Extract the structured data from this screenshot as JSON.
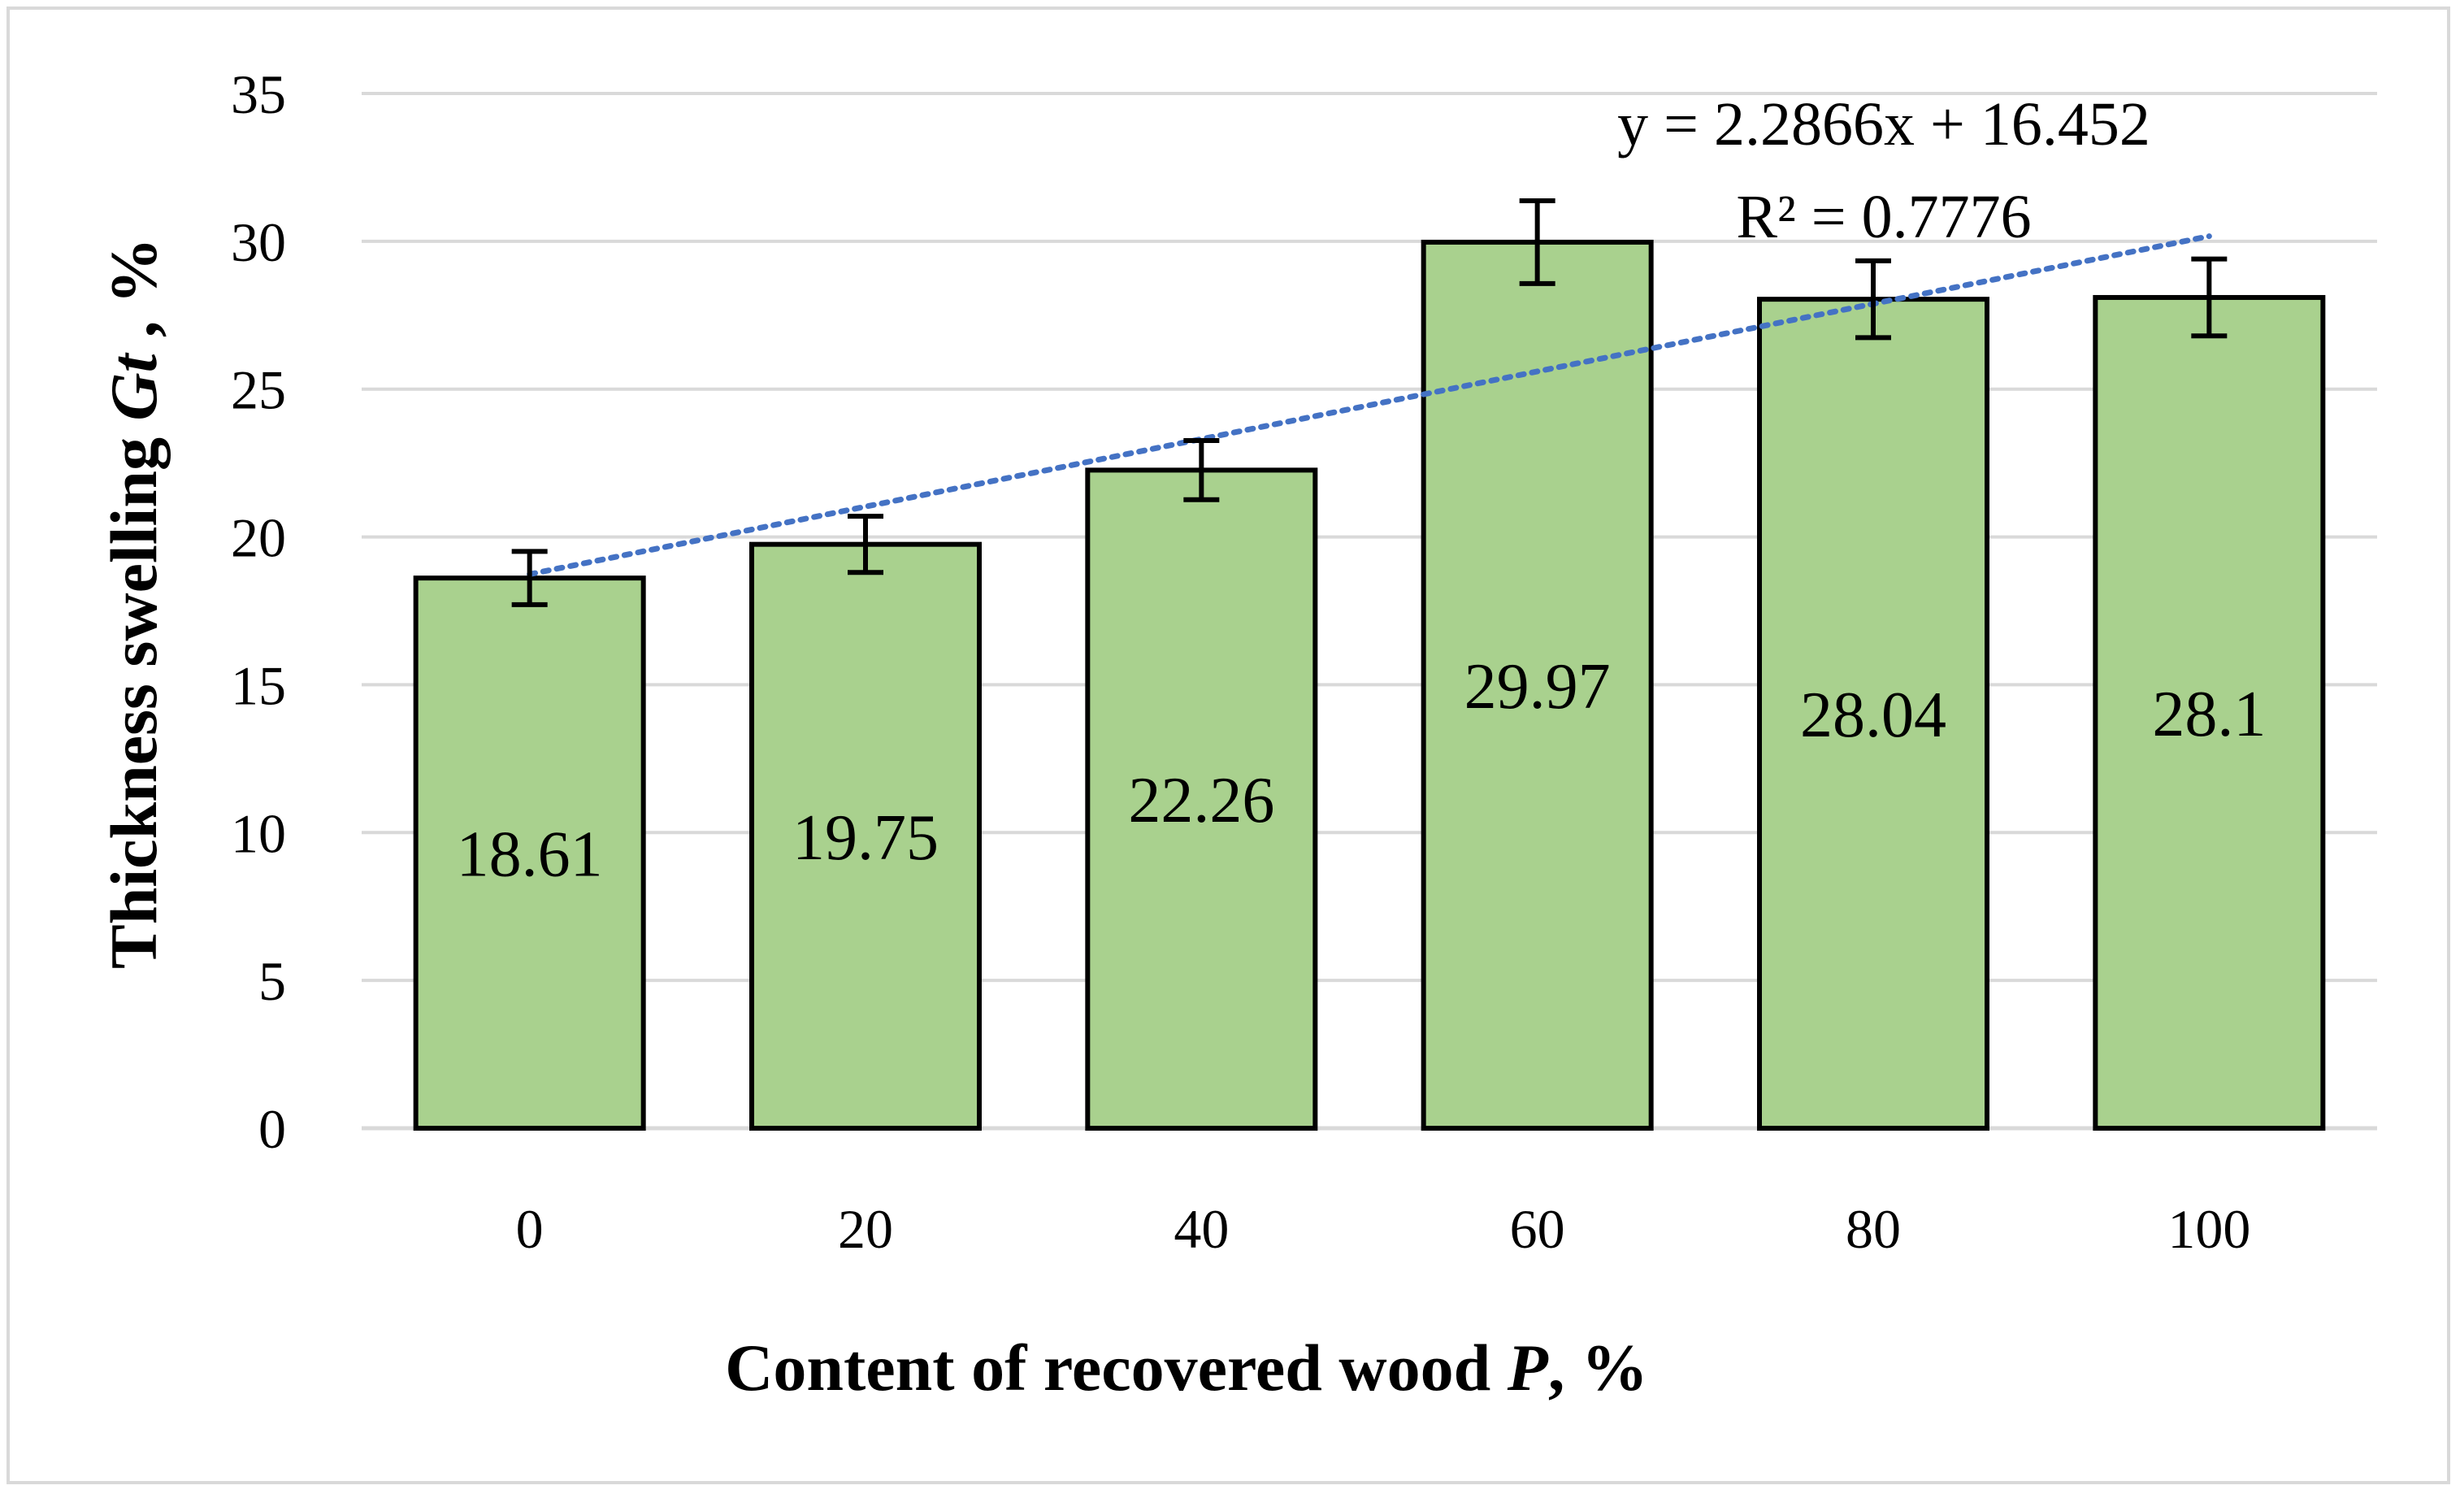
{
  "chart_data": {
    "type": "bar",
    "categories": [
      "0",
      "20",
      "40",
      "60",
      "80",
      "100"
    ],
    "values": [
      18.61,
      19.75,
      22.26,
      29.97,
      28.04,
      28.1
    ],
    "data_labels": [
      "18.61",
      "19.75",
      "22.26",
      "29.97",
      "28.04",
      "28.1"
    ],
    "error_bars": [
      0.9,
      0.95,
      1.0,
      1.4,
      1.3,
      1.3
    ],
    "ylim": [
      0,
      35
    ],
    "yticks": [
      "0",
      "5",
      "10",
      "15",
      "20",
      "25",
      "30",
      "35"
    ],
    "grid": true,
    "legend": "none",
    "xlabel": {
      "prefix": "Content of recovered wood ",
      "italic": "P",
      "suffix": ", %"
    },
    "ylabel": {
      "prefix": "Thickness swelling ",
      "italic": "Gt",
      "suffix": " , %"
    },
    "trendline": {
      "type": "linear",
      "slope": 2.2866,
      "intercept": 16.452,
      "equation": "y = 2.2866x + 16.452",
      "r_squared": "R² = 0.7776"
    },
    "colors": {
      "bar_fill": "#a9d18e",
      "bar_stroke": "#000000",
      "trendline": "#4472c4",
      "grid": "#d9d9d9",
      "error_bar": "#000000"
    }
  }
}
